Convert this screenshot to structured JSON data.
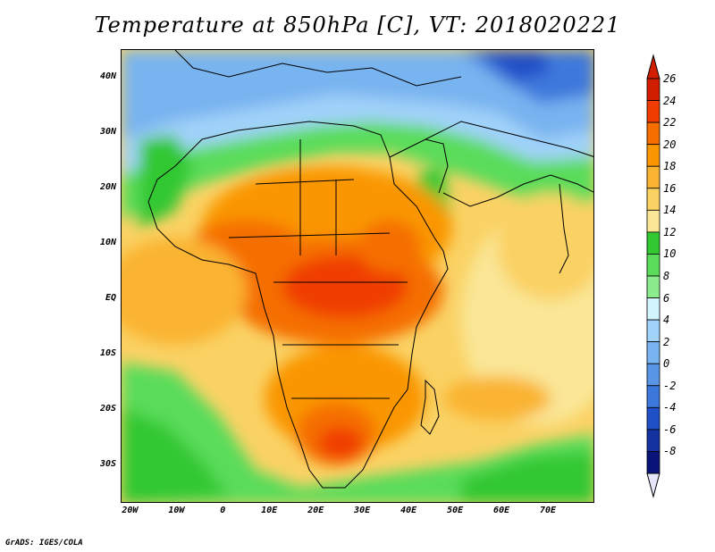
{
  "title": "Temperature at 850hPa [C], VT: 2018020221",
  "credit": "GrADS: IGES/COLA",
  "map": {
    "lat_ticks": [
      {
        "label": "40N",
        "value": 40
      },
      {
        "label": "30N",
        "value": 30
      },
      {
        "label": "20N",
        "value": 20
      },
      {
        "label": "10N",
        "value": 10
      },
      {
        "label": "EQ",
        "value": 0
      },
      {
        "label": "10S",
        "value": -10
      },
      {
        "label": "20S",
        "value": -20
      },
      {
        "label": "30S",
        "value": -30
      }
    ],
    "lon_ticks": [
      {
        "label": "20W",
        "value": -20
      },
      {
        "label": "10W",
        "value": -10
      },
      {
        "label": "0",
        "value": 0
      },
      {
        "label": "10E",
        "value": 10
      },
      {
        "label": "20E",
        "value": 20
      },
      {
        "label": "30E",
        "value": 30
      },
      {
        "label": "40E",
        "value": 40
      },
      {
        "label": "50E",
        "value": 50
      },
      {
        "label": "60E",
        "value": 60
      },
      {
        "label": "70E",
        "value": 70
      }
    ],
    "lon_range": [
      -22,
      80
    ],
    "lat_range": [
      -37,
      45
    ]
  },
  "colorbar": {
    "levels": [
      "26",
      "24",
      "22",
      "20",
      "18",
      "16",
      "14",
      "12",
      "10",
      "8",
      "6",
      "4",
      "2",
      "0",
      "-2",
      "-4",
      "-6",
      "-8"
    ],
    "colors": [
      "#d21e00",
      "#f03c00",
      "#f56e00",
      "#fa9600",
      "#fab432",
      "#fad264",
      "#fae696",
      "#32c832",
      "#5adc5a",
      "#8ceb8c",
      "#d2f5ff",
      "#a0d2fa",
      "#78b4f0",
      "#5a96e6",
      "#3c78dc",
      "#2050c8",
      "#1432a0",
      "#0a1478"
    ],
    "top_arrow_color": "#d21e00",
    "bottom_arrow_color": "#e6e6fa"
  }
}
